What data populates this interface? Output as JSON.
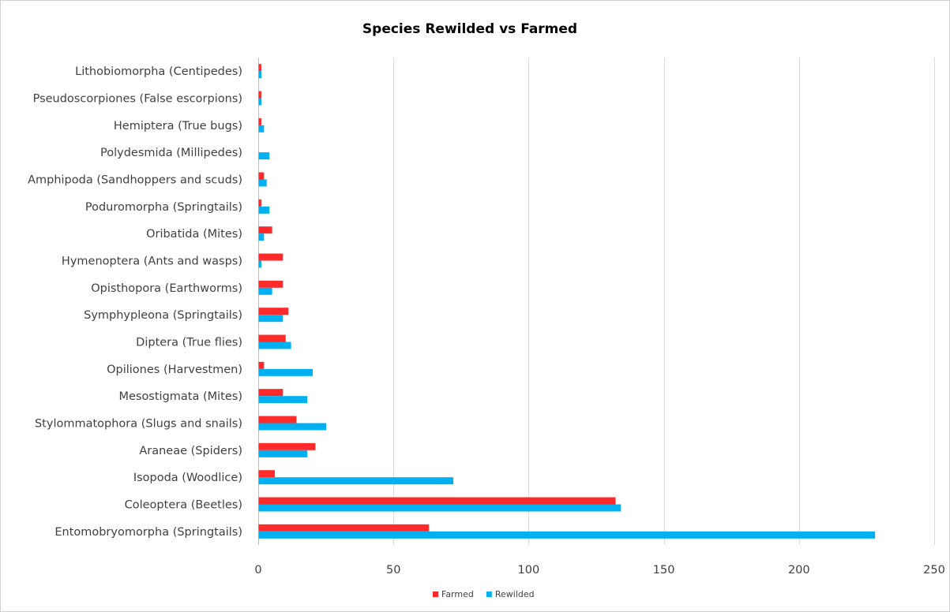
{
  "chart_data": {
    "type": "bar",
    "orientation": "horizontal",
    "title": "Species Rewilded vs Farmed",
    "xlabel": "",
    "ylabel": "",
    "xlim": [
      0,
      250
    ],
    "x_ticks": [
      0,
      50,
      100,
      150,
      200,
      250
    ],
    "grid": true,
    "legend_position": "bottom",
    "categories": [
      "Entomobryomorpha (Springtails)",
      "Coleoptera (Beetles)",
      "Isopoda (Woodlice)",
      "Araneae (Spiders)",
      "Stylommatophora (Slugs and snails)",
      "Mesostigmata (Mites)",
      "Opiliones (Harvestmen)",
      "Diptera (True flies)",
      "Symphypleona (Springtails)",
      "Opisthopora (Earthworms)",
      "Hymenoptera (Ants and wasps)",
      "Oribatida (Mites)",
      "Poduromorpha (Springtails)",
      "Amphipoda (Sandhoppers and scuds)",
      "Polydesmida (Millipedes)",
      "Hemiptera (True bugs)",
      "Pseudoscorpiones (False escorpions)",
      "Lithobiomorpha (Centipedes)"
    ],
    "series": [
      {
        "name": "Farmed",
        "color": "#ff2a2a",
        "values": [
          63,
          132,
          6,
          21,
          14,
          9,
          2,
          10,
          11,
          9,
          9,
          5,
          1,
          2,
          0,
          1,
          1,
          1
        ]
      },
      {
        "name": "Rewilded",
        "color": "#00b0f0",
        "values": [
          228,
          134,
          72,
          18,
          25,
          18,
          20,
          12,
          9,
          5,
          1,
          2,
          4,
          3,
          4,
          2,
          1,
          1
        ]
      }
    ]
  }
}
